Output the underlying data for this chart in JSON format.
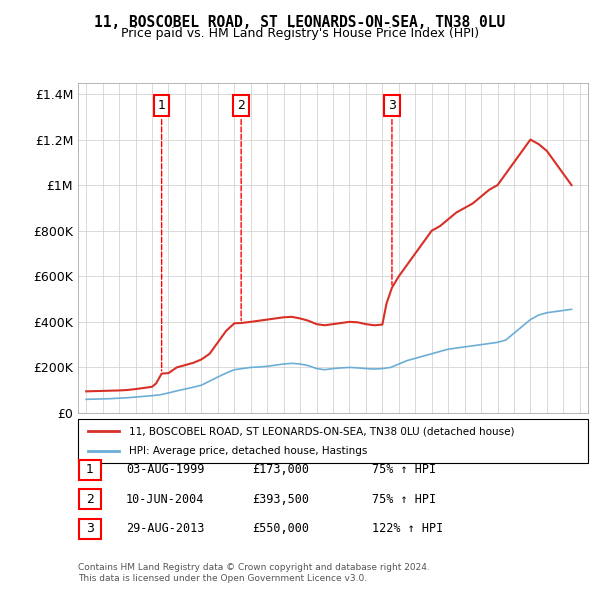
{
  "title": "11, BOSCOBEL ROAD, ST LEONARDS-ON-SEA, TN38 0LU",
  "subtitle": "Price paid vs. HM Land Registry's House Price Index (HPI)",
  "legend_entry1": "11, BOSCOBEL ROAD, ST LEONARDS-ON-SEA, TN38 0LU (detached house)",
  "legend_entry2": "HPI: Average price, detached house, Hastings",
  "footer1": "Contains HM Land Registry data © Crown copyright and database right 2024.",
  "footer2": "This data is licensed under the Open Government Licence v3.0.",
  "transactions": [
    {
      "num": 1,
      "date": "03-AUG-1999",
      "price": 173000,
      "pct": "75%",
      "dir": "↑"
    },
    {
      "num": 2,
      "date": "10-JUN-2004",
      "price": 393500,
      "pct": "75%",
      "dir": "↑"
    },
    {
      "num": 3,
      "date": "29-AUG-2013",
      "price": 550000,
      "pct": "122%",
      "dir": "↑"
    }
  ],
  "hpi_color": "#6baed6",
  "price_color": "#d73027",
  "hpi_data": {
    "years": [
      1995,
      1995.5,
      1996,
      1996.5,
      1997,
      1997.5,
      1998,
      1998.5,
      1999,
      1999.5,
      2000,
      2000.5,
      2001,
      2001.5,
      2002,
      2002.5,
      2003,
      2003.5,
      2004,
      2004.5,
      2005,
      2005.5,
      2006,
      2006.5,
      2007,
      2007.5,
      2008,
      2008.5,
      2009,
      2009.5,
      2010,
      2010.5,
      2011,
      2011.5,
      2012,
      2012.5,
      2013,
      2013.5,
      2014,
      2014.5,
      2015,
      2015.5,
      2016,
      2016.5,
      2017,
      2017.5,
      2018,
      2018.5,
      2019,
      2019.5,
      2020,
      2020.5,
      2021,
      2021.5,
      2022,
      2022.5,
      2023,
      2023.5,
      2024,
      2024.5
    ],
    "values": [
      60000,
      61000,
      62000,
      63000,
      65000,
      67000,
      70000,
      73000,
      76000,
      80000,
      88000,
      97000,
      105000,
      113000,
      122000,
      140000,
      158000,
      175000,
      190000,
      195000,
      200000,
      202000,
      205000,
      210000,
      215000,
      218000,
      215000,
      208000,
      195000,
      190000,
      195000,
      198000,
      200000,
      198000,
      195000,
      193000,
      195000,
      200000,
      215000,
      230000,
      240000,
      250000,
      260000,
      270000,
      280000,
      285000,
      290000,
      295000,
      300000,
      305000,
      310000,
      320000,
      350000,
      380000,
      410000,
      430000,
      440000,
      445000,
      450000,
      455000
    ]
  },
  "house_data": {
    "years": [
      1995,
      1995.5,
      1996,
      1996.5,
      1997,
      1997.5,
      1998,
      1998.5,
      1999,
      1999.25,
      1999.583,
      2000,
      2000.5,
      2001,
      2001.5,
      2002,
      2002.5,
      2003,
      2003.5,
      2004,
      2004.417,
      2005,
      2005.5,
      2006,
      2006.5,
      2007,
      2007.5,
      2008,
      2008.5,
      2009,
      2009.5,
      2010,
      2010.5,
      2011,
      2011.5,
      2012,
      2012.5,
      2013,
      2013.25,
      2013.583,
      2014,
      2014.5,
      2015,
      2015.5,
      2016,
      2016.5,
      2017,
      2017.5,
      2018,
      2018.5,
      2019,
      2019.5,
      2020,
      2020.5,
      2021,
      2021.5,
      2022,
      2022.5,
      2023,
      2023.5,
      2024,
      2024.5
    ],
    "values": [
      95000,
      96000,
      97000,
      98000,
      99000,
      101000,
      105000,
      110000,
      115000,
      130000,
      173000,
      175000,
      200000,
      210000,
      220000,
      235000,
      260000,
      310000,
      360000,
      393500,
      395000,
      400000,
      405000,
      410000,
      415000,
      420000,
      422000,
      415000,
      405000,
      390000,
      385000,
      390000,
      395000,
      400000,
      398000,
      390000,
      385000,
      388000,
      480000,
      550000,
      600000,
      650000,
      700000,
      750000,
      800000,
      820000,
      850000,
      880000,
      900000,
      920000,
      950000,
      980000,
      1000000,
      1050000,
      1100000,
      1150000,
      1200000,
      1180000,
      1150000,
      1100000,
      1050000,
      1000000
    ]
  },
  "ylim": [
    0,
    1450000
  ],
  "xlim": [
    1994.5,
    2025.5
  ],
  "yticks": [
    0,
    200000,
    400000,
    600000,
    800000,
    1000000,
    1200000,
    1400000
  ],
  "ytick_labels": [
    "£0",
    "£200K",
    "£400K",
    "£600K",
    "£800K",
    "£1M",
    "£1.2M",
    "£1.4M"
  ],
  "marker_years": [
    1999.583,
    2004.417,
    2013.583
  ],
  "marker_values": [
    173000,
    393500,
    550000
  ],
  "marker_labels": [
    "1",
    "2",
    "3"
  ],
  "background_color": "#ffffff",
  "grid_color": "#cccccc"
}
